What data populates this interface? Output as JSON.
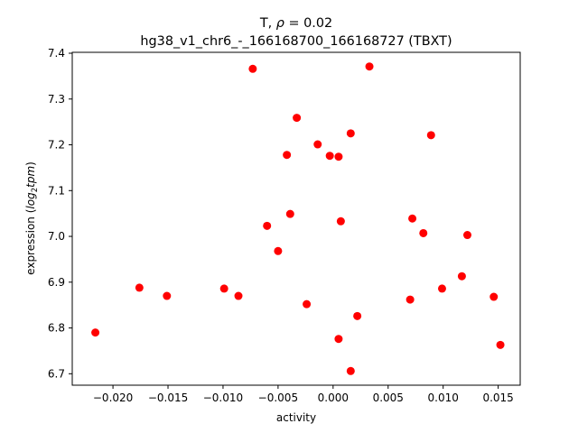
{
  "chart_data": {
    "type": "scatter",
    "title_line1_prefix": "T, ",
    "title_rho_symbol": "ρ",
    "title_rho_suffix": " = 0.02",
    "title_line2": "hg38_v1_chr6_-_166168700_166168727 (TBXT)",
    "xlabel": "activity",
    "ylabel_prefix": "expression (",
    "ylabel_log": "log",
    "ylabel_sub": "2",
    "ylabel_tpm": "tpm",
    "ylabel_suffix": ")",
    "xlim": [
      -0.0237,
      0.017
    ],
    "ylim": [
      6.675,
      7.402
    ],
    "x_ticks": [
      -0.02,
      -0.015,
      -0.01,
      -0.005,
      0.0,
      0.005,
      0.01,
      0.015
    ],
    "x_tick_labels": [
      "−0.020",
      "−0.015",
      "−0.010",
      "−0.005",
      "0.000",
      "0.005",
      "0.010",
      "0.015"
    ],
    "y_ticks": [
      6.7,
      6.8,
      6.9,
      7.0,
      7.1,
      7.2,
      7.3,
      7.4
    ],
    "y_tick_labels": [
      "6.7",
      "6.8",
      "6.9",
      "7.0",
      "7.1",
      "7.2",
      "7.3",
      "7.4"
    ],
    "marker_color": "#ff0000",
    "grid": false,
    "points": [
      {
        "x": -0.0216,
        "y": 6.79
      },
      {
        "x": -0.0176,
        "y": 6.888
      },
      {
        "x": -0.0151,
        "y": 6.87
      },
      {
        "x": -0.0099,
        "y": 6.886
      },
      {
        "x": -0.0086,
        "y": 6.87
      },
      {
        "x": -0.0073,
        "y": 7.366
      },
      {
        "x": -0.006,
        "y": 7.023
      },
      {
        "x": -0.005,
        "y": 6.968
      },
      {
        "x": -0.0042,
        "y": 7.178
      },
      {
        "x": -0.0039,
        "y": 7.049
      },
      {
        "x": -0.0033,
        "y": 7.259
      },
      {
        "x": -0.0024,
        "y": 6.852
      },
      {
        "x": -0.0014,
        "y": 7.201
      },
      {
        "x": -0.0003,
        "y": 7.176
      },
      {
        "x": 0.0005,
        "y": 7.174
      },
      {
        "x": 0.0005,
        "y": 6.776
      },
      {
        "x": 0.0007,
        "y": 7.033
      },
      {
        "x": 0.0016,
        "y": 7.225
      },
      {
        "x": 0.0016,
        "y": 6.706
      },
      {
        "x": 0.0022,
        "y": 6.826
      },
      {
        "x": 0.0033,
        "y": 7.371
      },
      {
        "x": 0.007,
        "y": 6.862
      },
      {
        "x": 0.0072,
        "y": 7.039
      },
      {
        "x": 0.0082,
        "y": 7.007
      },
      {
        "x": 0.0089,
        "y": 7.221
      },
      {
        "x": 0.0099,
        "y": 6.886
      },
      {
        "x": 0.0117,
        "y": 6.913
      },
      {
        "x": 0.0122,
        "y": 7.003
      },
      {
        "x": 0.0146,
        "y": 6.868
      },
      {
        "x": 0.0152,
        "y": 6.763
      }
    ]
  }
}
